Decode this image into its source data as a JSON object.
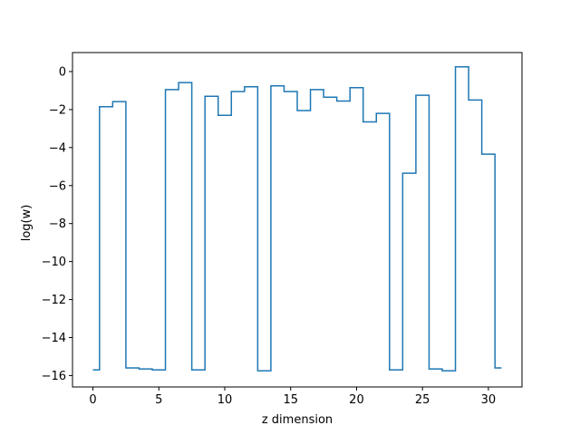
{
  "chart_data": {
    "type": "line",
    "drawstyle": "steps-mid",
    "title": "",
    "xlabel": "z dimension",
    "ylabel": "log(w)",
    "xlim": [
      -1.55,
      32.55
    ],
    "ylim": [
      -16.6,
      1.0
    ],
    "x_ticks": [
      0,
      5,
      10,
      15,
      20,
      25,
      30
    ],
    "y_ticks": [
      0,
      -2,
      -4,
      -6,
      -8,
      -10,
      -12,
      -14,
      -16
    ],
    "grid": false,
    "series": [
      {
        "color": "#1f77b4",
        "x": [
          0,
          1,
          2,
          3,
          4,
          5,
          6,
          7,
          8,
          9,
          10,
          11,
          12,
          13,
          14,
          15,
          16,
          17,
          18,
          19,
          20,
          21,
          22,
          23,
          24,
          25,
          26,
          27,
          28,
          29,
          30,
          31
        ],
        "values": [
          -15.7,
          -1.85,
          -1.58,
          -15.6,
          -15.65,
          -15.7,
          -0.95,
          -0.58,
          -15.7,
          -1.3,
          -2.3,
          -1.05,
          -0.8,
          -15.75,
          -0.75,
          -1.05,
          -2.05,
          -0.95,
          -1.35,
          -1.55,
          -0.85,
          -2.65,
          -2.2,
          -15.7,
          -5.35,
          -1.25,
          -15.65,
          -15.75,
          0.25,
          -1.5,
          -4.35,
          -15.6
        ]
      }
    ]
  }
}
